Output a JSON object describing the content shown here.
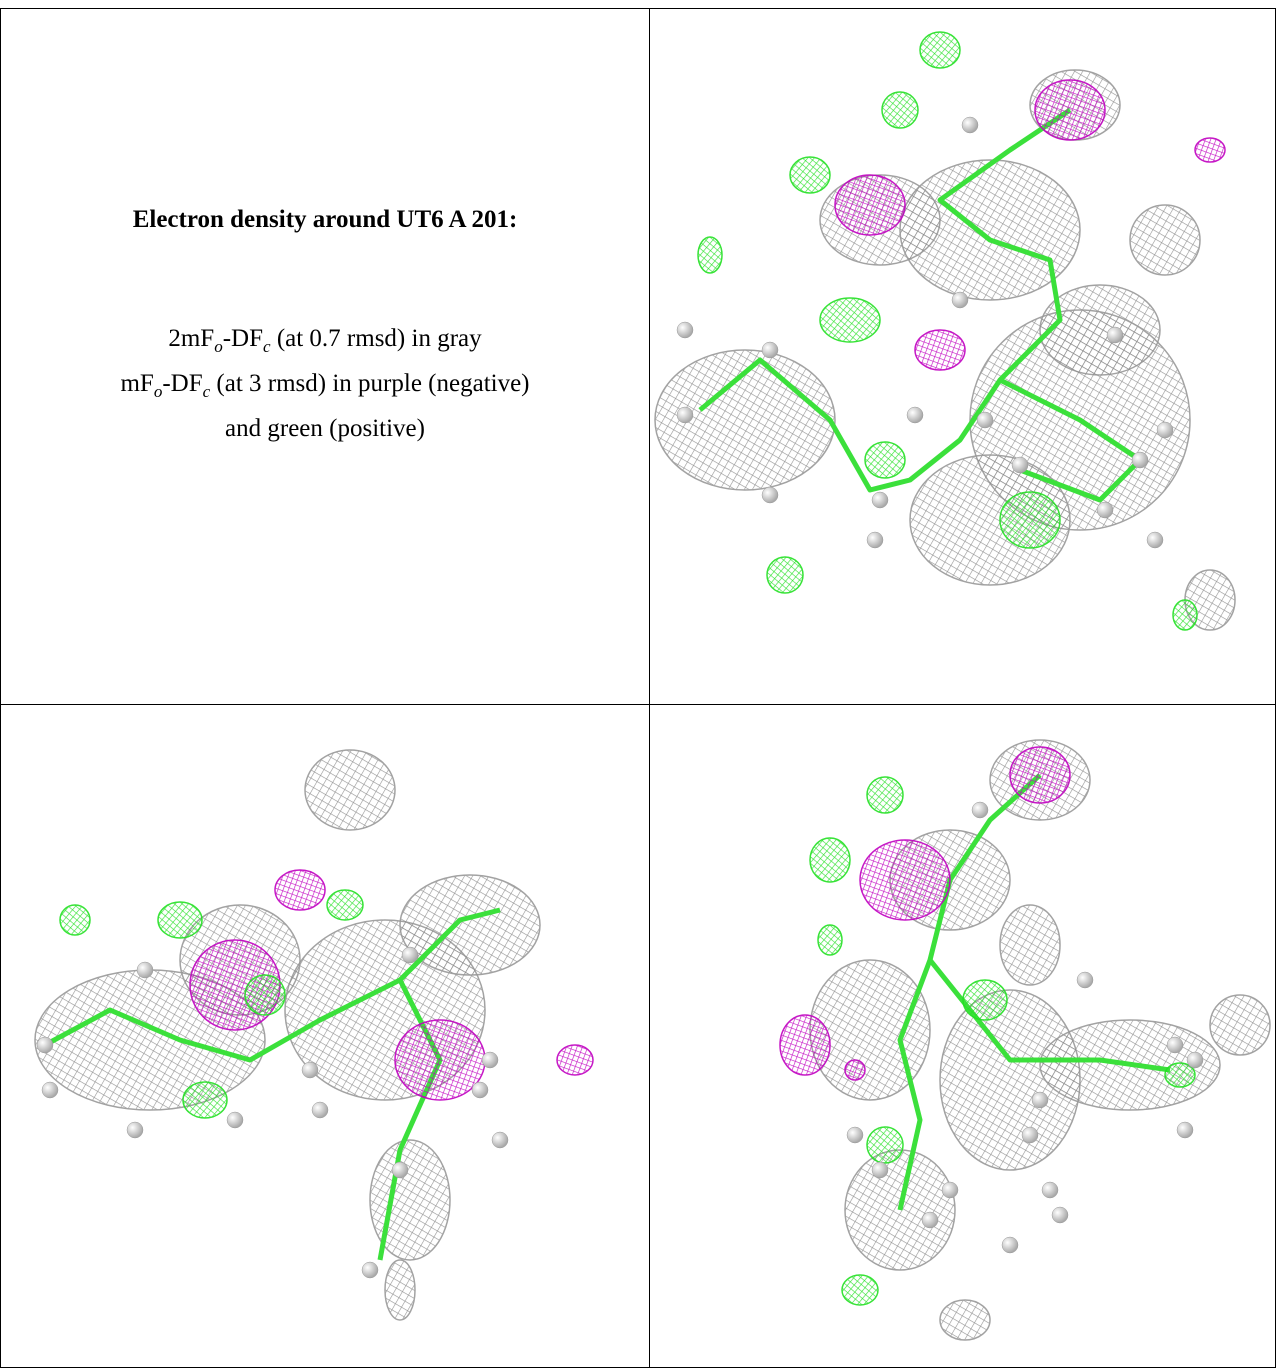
{
  "panel": {
    "title": "Electron density around UT6 A 201:",
    "legend": [
      [
        {
          "text": "2mF"
        },
        {
          "sub": "o"
        },
        {
          "text": "-DF"
        },
        {
          "sub": "c"
        },
        {
          "text": " (at 0.7 rmsd) in gray"
        }
      ],
      [
        {
          "text": "mF"
        },
        {
          "sub": "o"
        },
        {
          "text": "-DF"
        },
        {
          "sub": "c"
        },
        {
          "text": " (at 3 rmsd) in purple (negative)"
        }
      ],
      [
        {
          "text": "and green (positive)"
        }
      ]
    ]
  }
}
